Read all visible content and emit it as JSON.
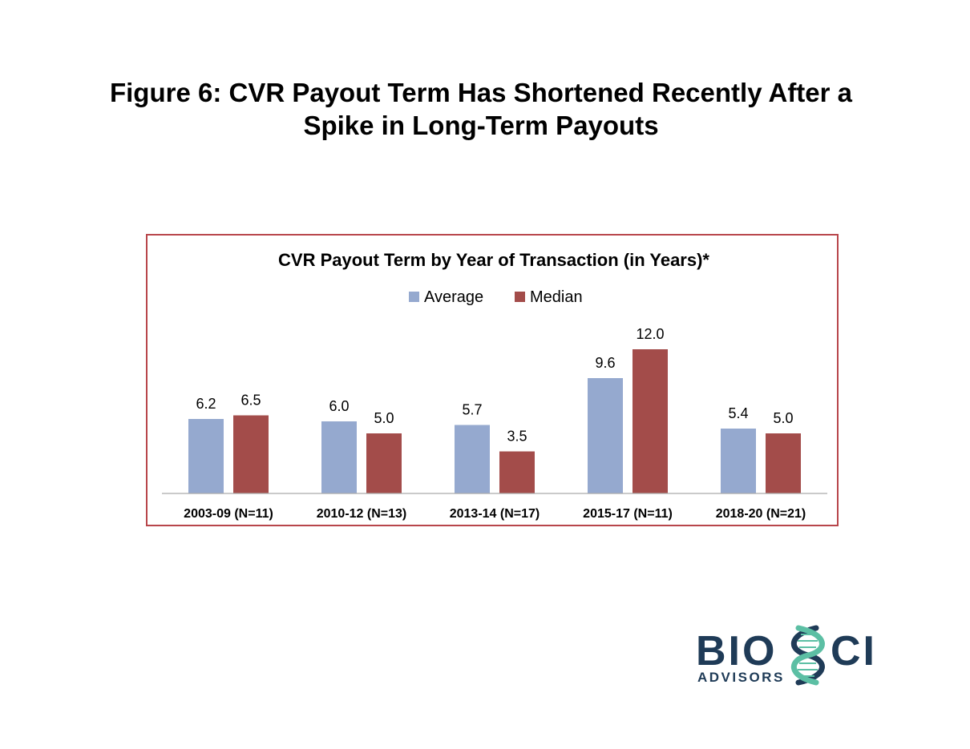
{
  "page": {
    "title_line1": "Figure 6:  CVR Payout Term Has Shortened Recently After a",
    "title_line2": "Spike in Long-Term Payouts"
  },
  "chart_data": {
    "type": "bar",
    "title": "CVR Payout Term by Year of Transaction (in Years)*",
    "categories": [
      "2003-09 (N=11)",
      "2010-12 (N=13)",
      "2013-14 (N=17)",
      "2015-17 (N=11)",
      "2018-20 (N=21)"
    ],
    "series": [
      {
        "name": "Average",
        "color": "#95a9cf",
        "values": [
          6.2,
          6.0,
          5.7,
          9.6,
          5.4
        ],
        "labels": [
          "6.2",
          "6.0",
          "5.7",
          "9.6",
          "5.4"
        ]
      },
      {
        "name": "Median",
        "color": "#a34c4a",
        "values": [
          6.5,
          5.0,
          3.5,
          12.0,
          5.0
        ],
        "labels": [
          "6.5",
          "5.0",
          "3.5",
          "12.0",
          "5.0"
        ]
      }
    ],
    "xlabel": "",
    "ylabel": "",
    "ylim": [
      0,
      12
    ],
    "grid": false,
    "legend": "top-center",
    "border_color": "#b8464b"
  },
  "logo": {
    "text_main_left": "BIO",
    "text_main_right": "CI",
    "text_sub": "ADVISORS",
    "color_dark": "#1f3b57",
    "color_accent": "#5cbfa4"
  }
}
